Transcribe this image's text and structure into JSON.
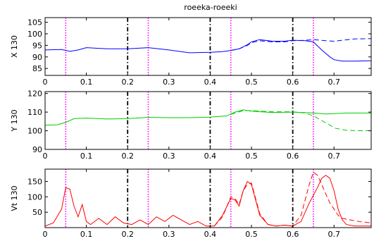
{
  "title": "roeeka-roeeki",
  "chart_data": [
    {
      "type": "line",
      "ylabel": "X 130",
      "xlim": [
        0,
        0.79
      ],
      "ylim": [
        82,
        107
      ],
      "yticks": [
        85,
        90,
        95,
        100,
        105
      ],
      "xticks": [
        0,
        0.1,
        0.2,
        0.3,
        0.4,
        0.5,
        0.6,
        0.7
      ],
      "vlines": {
        "magenta_dotted": [
          0.05,
          0.25,
          0.45,
          0.65
        ],
        "black_dashdot": [
          0.2,
          0.4,
          0.6
        ]
      },
      "series": [
        {
          "style": "solid",
          "color": "#0000ff",
          "x": [
            0,
            0.04,
            0.06,
            0.08,
            0.1,
            0.15,
            0.2,
            0.25,
            0.3,
            0.35,
            0.4,
            0.43,
            0.45,
            0.47,
            0.49,
            0.5,
            0.52,
            0.55,
            0.58,
            0.6,
            0.63,
            0.65,
            0.67,
            0.69,
            0.7,
            0.72,
            0.75,
            0.79
          ],
          "y": [
            93.0,
            93.2,
            92.4,
            93.0,
            94.0,
            93.5,
            93.5,
            94.0,
            93.0,
            91.8,
            92.0,
            92.3,
            92.8,
            93.5,
            95.3,
            96.5,
            97.5,
            96.8,
            96.8,
            97.2,
            97.0,
            96.5,
            93.0,
            90.0,
            88.8,
            88.2,
            88.2,
            88.3
          ]
        },
        {
          "style": "dashed",
          "color": "#0000ff",
          "x": [
            0.45,
            0.47,
            0.49,
            0.5,
            0.52,
            0.55,
            0.58,
            0.6,
            0.63,
            0.65,
            0.68,
            0.7,
            0.72,
            0.75,
            0.79
          ],
          "y": [
            92.8,
            93.5,
            95.0,
            96.2,
            97.0,
            96.5,
            96.5,
            97.0,
            97.2,
            97.5,
            97.0,
            96.8,
            97.2,
            97.8,
            97.9
          ]
        }
      ]
    },
    {
      "type": "line",
      "ylabel": "Y 130",
      "xlim": [
        0,
        0.79
      ],
      "ylim": [
        90,
        121
      ],
      "yticks": [
        90,
        100,
        110,
        120
      ],
      "xticks": [
        0,
        0.1,
        0.2,
        0.3,
        0.4,
        0.5,
        0.6,
        0.7
      ],
      "vlines": {
        "magenta_dotted": [
          0.05,
          0.25,
          0.45,
          0.65
        ],
        "black_dashdot": [
          0.2,
          0.4,
          0.6
        ]
      },
      "series": [
        {
          "style": "solid",
          "color": "#00cc00",
          "x": [
            0,
            0.03,
            0.05,
            0.07,
            0.1,
            0.15,
            0.2,
            0.25,
            0.3,
            0.35,
            0.4,
            0.44,
            0.46,
            0.48,
            0.5,
            0.55,
            0.6,
            0.65,
            0.68,
            0.7,
            0.73,
            0.79
          ],
          "y": [
            103.0,
            103.2,
            104.5,
            106.5,
            106.8,
            106.3,
            106.5,
            107.2,
            107.0,
            107.0,
            107.3,
            108.0,
            110.0,
            111.2,
            110.5,
            109.8,
            110.0,
            109.6,
            109.0,
            109.2,
            109.5,
            109.5
          ]
        },
        {
          "style": "dashed",
          "color": "#00cc00",
          "x": [
            0.45,
            0.48,
            0.5,
            0.55,
            0.6,
            0.63,
            0.65,
            0.67,
            0.69,
            0.7,
            0.73,
            0.76,
            0.79
          ],
          "y": [
            108.8,
            110.8,
            110.8,
            110.2,
            110.2,
            109.5,
            108.0,
            105.5,
            103.0,
            101.5,
            100.2,
            100.0,
            100.0
          ]
        }
      ]
    },
    {
      "type": "line",
      "ylabel": "Vt 130",
      "xlim": [
        0,
        0.79
      ],
      "ylim": [
        0,
        190
      ],
      "yticks": [
        50,
        100,
        150
      ],
      "xticks": [
        0,
        0.1,
        0.2,
        0.3,
        0.4,
        0.5,
        0.6,
        0.7
      ],
      "vlines": {
        "magenta_dotted": [
          0.05,
          0.25,
          0.45,
          0.65
        ],
        "black_dashdot": [
          0.2,
          0.4,
          0.6
        ]
      },
      "series": [
        {
          "style": "solid",
          "color": "#ff0000",
          "x": [
            0,
            0.02,
            0.04,
            0.05,
            0.06,
            0.07,
            0.08,
            0.09,
            0.1,
            0.11,
            0.13,
            0.15,
            0.17,
            0.19,
            0.21,
            0.23,
            0.25,
            0.27,
            0.29,
            0.31,
            0.33,
            0.35,
            0.37,
            0.39,
            0.41,
            0.43,
            0.45,
            0.46,
            0.47,
            0.48,
            0.49,
            0.5,
            0.51,
            0.52,
            0.54,
            0.56,
            0.58,
            0.6,
            0.62,
            0.64,
            0.66,
            0.67,
            0.68,
            0.69,
            0.7,
            0.71,
            0.72,
            0.73,
            0.75,
            0.77,
            0.79
          ],
          "y": [
            5,
            15,
            60,
            130,
            125,
            70,
            35,
            75,
            20,
            10,
            30,
            10,
            35,
            15,
            10,
            25,
            10,
            35,
            20,
            40,
            25,
            10,
            20,
            5,
            5,
            40,
            95,
            90,
            70,
            120,
            150,
            140,
            90,
            40,
            10,
            5,
            8,
            5,
            20,
            80,
            130,
            160,
            170,
            160,
            120,
            60,
            25,
            10,
            5,
            5,
            5
          ]
        },
        {
          "style": "dashed",
          "color": "#ff0000",
          "x": [
            0.41,
            0.43,
            0.45,
            0.46,
            0.47,
            0.48,
            0.49,
            0.5,
            0.51,
            0.52,
            0.54,
            0.56,
            0.58,
            0.6,
            0.62,
            0.64,
            0.65,
            0.66,
            0.67,
            0.68,
            0.69,
            0.7,
            0.71,
            0.72,
            0.74,
            0.76,
            0.79
          ],
          "y": [
            5,
            35,
            100,
            95,
            75,
            120,
            140,
            145,
            95,
            45,
            10,
            5,
            8,
            5,
            40,
            140,
            180,
            170,
            140,
            110,
            80,
            60,
            40,
            30,
            25,
            20,
            15
          ]
        }
      ]
    }
  ]
}
